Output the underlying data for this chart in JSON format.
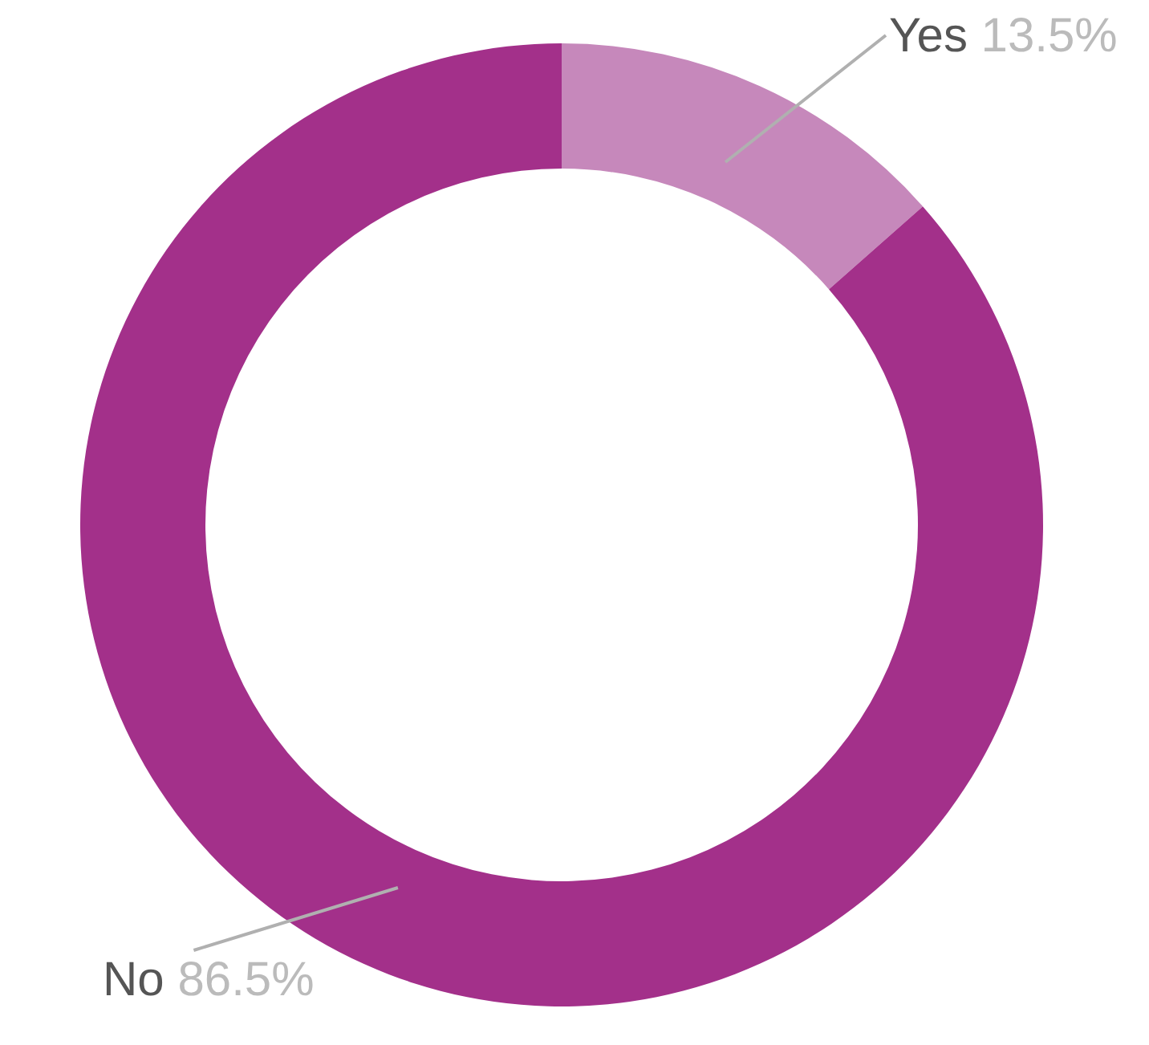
{
  "chart_data": {
    "type": "donut",
    "categories": [
      "Yes",
      "No"
    ],
    "values": [
      13.5,
      86.5
    ],
    "colors": [
      "#c688bb",
      "#a3308a"
    ],
    "value_labels": [
      "13.5%",
      "86.5%"
    ]
  }
}
